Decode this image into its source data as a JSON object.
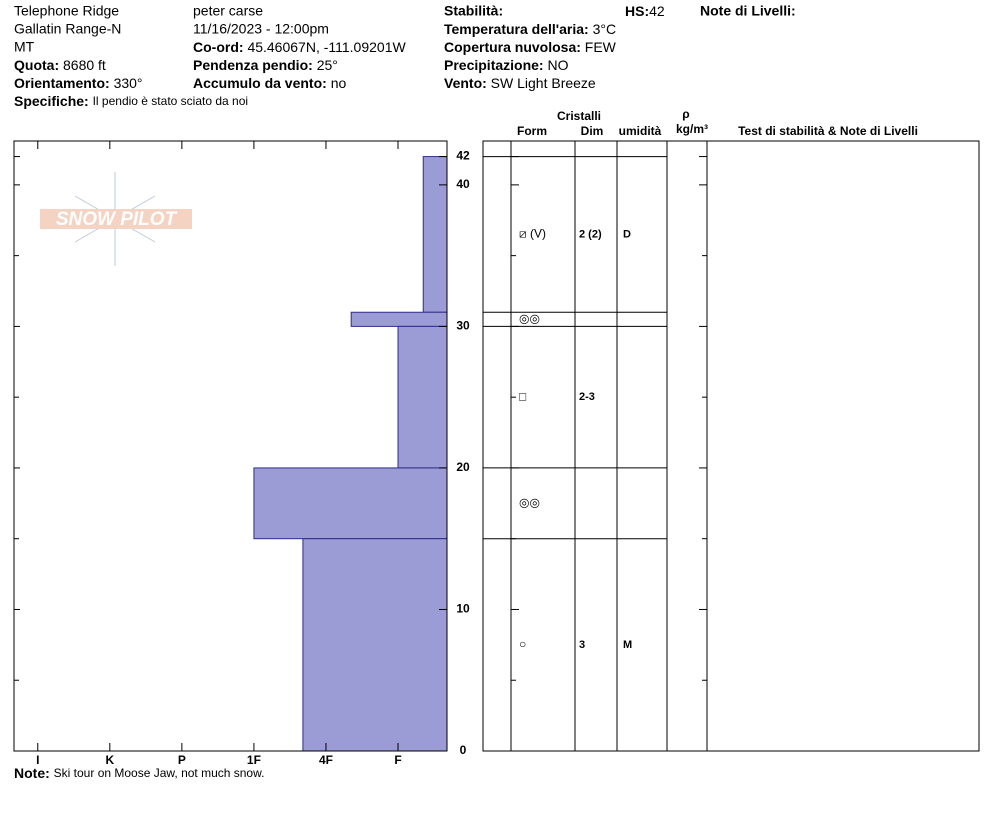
{
  "header": {
    "location": "Telephone Ridge",
    "range": "Gallatin Range-N",
    "state": "MT",
    "elevation": {
      "label": "Quota:",
      "value": "8680 ft"
    },
    "aspect": {
      "label": "Orientamento:",
      "value": "330°"
    },
    "specifics": {
      "label": "Specifiche:",
      "value": "Il pendio è stato sciato da noi"
    },
    "observer": "peter carse",
    "datetime": "11/16/2023 - 12:00pm",
    "coords": {
      "label": "Co-ord:",
      "value": "45.46067N, -111.09201W"
    },
    "slope": {
      "label": "Pendenza pendio:",
      "value": "25°"
    },
    "wind_loading": {
      "label": "Accumulo da vento:",
      "value": "no"
    },
    "stability": {
      "label": "Stabilità:"
    },
    "hs": {
      "label": "HS:",
      "value": "42"
    },
    "air_temp": {
      "label": "Temperatura dell'aria:",
      "value": "3°C"
    },
    "sky": {
      "label": "Copertura nuvolosa:",
      "value": "FEW"
    },
    "precip": {
      "label": "Precipitazione:",
      "value": "NO"
    },
    "wind": {
      "label": "Vento:",
      "value": "SW Light Breeze"
    },
    "layer_notes": {
      "label": "Note di Livelli:"
    }
  },
  "logo": "SNOW PILOT",
  "table_header": {
    "crystals": "Cristalli",
    "form": "Form",
    "size": "Dim",
    "moisture": "umidità",
    "density_symbol": "ρ",
    "density_unit": "kg/m³",
    "tests": "Test di stabilità & Note di Livelli"
  },
  "note": {
    "label": "Note:",
    "value": "Ski tour on Moose Jaw, not much snow."
  },
  "chart_data": {
    "type": "snow-profile",
    "color": "#9b9bd6",
    "edge_color": "#2e2e8a",
    "xlim": [
      6.33,
      0.32
    ],
    "xticks": [
      {
        "value": 6,
        "label": "I"
      },
      {
        "value": 5,
        "label": "K"
      },
      {
        "value": 4,
        "label": "P"
      },
      {
        "value": 3,
        "label": "1F"
      },
      {
        "value": 2,
        "label": "4F"
      },
      {
        "value": 1,
        "label": "F"
      }
    ],
    "ylim": [
      0,
      43.1
    ],
    "yticks": [
      0,
      10,
      20,
      30,
      40,
      42
    ],
    "yminorticks": [
      5,
      15,
      25,
      35
    ],
    "layers": [
      {
        "bottom": 31,
        "top": 42,
        "hardness": 0.65,
        "form": "⧄ (V)",
        "size": "2 (2)",
        "moisture": "D"
      },
      {
        "bottom": 30,
        "top": 31,
        "hardness": 1.65,
        "form": "◎◎"
      },
      {
        "bottom": 20,
        "top": 30,
        "hardness": 1,
        "form": "□",
        "size": "2-3"
      },
      {
        "bottom": 15,
        "top": 20,
        "hardness": 3,
        "form": "◎◎"
      },
      {
        "bottom": 0,
        "top": 15,
        "hardness": 2.32,
        "form": "○",
        "size": "3",
        "moisture": "M"
      }
    ]
  }
}
